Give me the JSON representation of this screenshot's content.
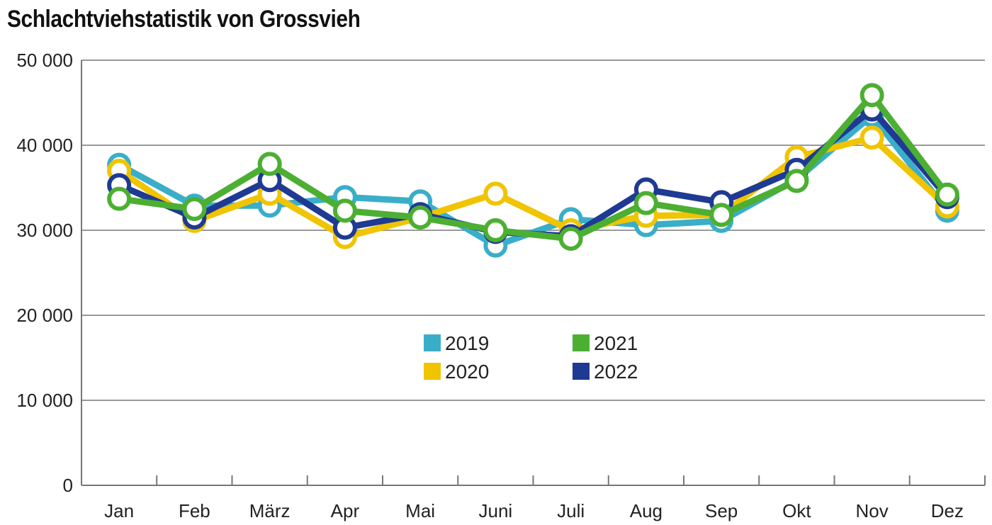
{
  "chart_data": {
    "type": "line",
    "title": "Schlachtviehstatistik von Grossvieh",
    "xlabel": "",
    "ylabel": "",
    "categories": [
      "Jan",
      "Feb",
      "März",
      "Apr",
      "Mai",
      "Juni",
      "Juli",
      "Aug",
      "Sep",
      "Okt",
      "Nov",
      "Dez"
    ],
    "ylim": [
      0,
      50000
    ],
    "yticks": [
      0,
      10000,
      20000,
      30000,
      40000,
      50000
    ],
    "ytick_labels": [
      "0",
      "10 000",
      "20 000",
      "30 000",
      "40 000",
      "50 000"
    ],
    "grid": "horizontal",
    "legend_position": "center",
    "series": [
      {
        "name": "2019",
        "color": "#3aaec8",
        "values": [
          37700,
          32900,
          32900,
          33900,
          33400,
          28200,
          31300,
          30600,
          31100,
          36000,
          43500,
          32300
        ]
      },
      {
        "name": "2020",
        "color": "#f0c400",
        "values": [
          37000,
          31100,
          34300,
          29200,
          31500,
          34300,
          30000,
          31700,
          31800,
          38600,
          40900,
          32800
        ]
      },
      {
        "name": "2022",
        "color": "#1f3a93",
        "values": [
          35300,
          31500,
          35900,
          30300,
          31900,
          29800,
          29300,
          34800,
          33300,
          37100,
          44200,
          33900
        ]
      },
      {
        "name": "2021",
        "color": "#4caf32",
        "values": [
          33700,
          32500,
          37800,
          32300,
          31500,
          30000,
          29000,
          33200,
          31800,
          35800,
          45900,
          34200
        ]
      }
    ],
    "legend_order": [
      "2019",
      "2021",
      "2020",
      "2022"
    ]
  }
}
